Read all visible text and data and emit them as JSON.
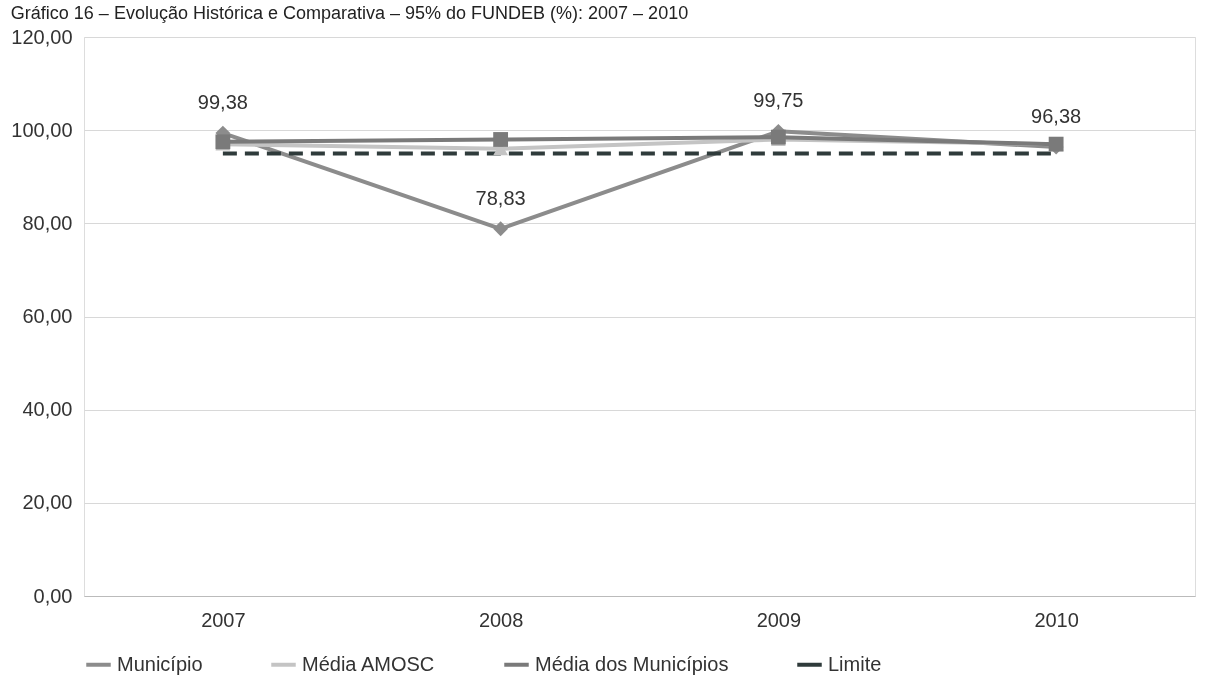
{
  "chart_data": {
    "type": "line",
    "title": "Gráfico 16 – Evolução Histórica e Comparativa – 95% do FUNDEB (%): 2007 – 2010",
    "categories": [
      "2007",
      "2008",
      "2009",
      "2010"
    ],
    "series": [
      {
        "name": "Município",
        "color": "#8c8c8c",
        "marker": "diamond",
        "line_style": "solid",
        "values": [
          99.38,
          78.83,
          99.75,
          96.38
        ],
        "value_labels": [
          "99,38",
          "78,83",
          "99,75",
          "96,38"
        ]
      },
      {
        "name": "Média AMOSC",
        "color": "#c4c4c4",
        "marker": "triangle",
        "line_style": "solid",
        "values": [
          97,
          96,
          98,
          97
        ]
      },
      {
        "name": "Média dos Municípios",
        "color": "#7a7a7a",
        "marker": "square",
        "line_style": "solid",
        "values": [
          97.5,
          98,
          98.5,
          97
        ]
      },
      {
        "name": "Limite",
        "color": "#2f3b3b",
        "marker": "none",
        "line_style": "dashed",
        "values": [
          95,
          95,
          95,
          95
        ]
      }
    ],
    "ylim": [
      0,
      120
    ],
    "yticks": [
      {
        "value": 0,
        "label": "0,00"
      },
      {
        "value": 20,
        "label": "20,00"
      },
      {
        "value": 40,
        "label": "40,00"
      },
      {
        "value": 60,
        "label": "60,00"
      },
      {
        "value": 80,
        "label": "80,00"
      },
      {
        "value": 100,
        "label": "100,00"
      },
      {
        "value": 120,
        "label": "120,00"
      }
    ],
    "grid": "y",
    "legend": "bottom"
  }
}
